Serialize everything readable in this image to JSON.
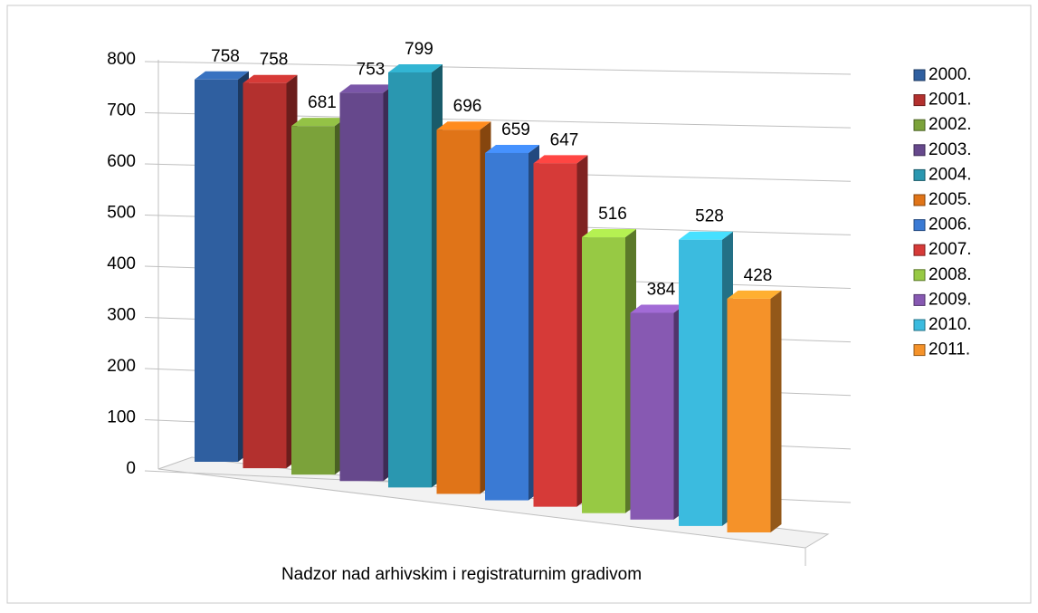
{
  "chart_data": {
    "type": "bar3d",
    "categories": [
      "Nadzor nad arhivskim i registraturnim gradivom"
    ],
    "series": [
      {
        "name": "2000.",
        "color": "#2f5fa0",
        "values": [
          758
        ]
      },
      {
        "name": "2001.",
        "color": "#b3302e",
        "values": [
          758
        ]
      },
      {
        "name": "2002.",
        "color": "#7ba23a",
        "values": [
          681
        ]
      },
      {
        "name": "2003.",
        "color": "#66488c",
        "values": [
          753
        ]
      },
      {
        "name": "2004.",
        "color": "#2a97b0",
        "values": [
          799
        ]
      },
      {
        "name": "2005.",
        "color": "#e07418",
        "values": [
          696
        ]
      },
      {
        "name": "2006.",
        "color": "#3a7ad4",
        "values": [
          659
        ]
      },
      {
        "name": "2007.",
        "color": "#d63a38",
        "values": [
          647
        ]
      },
      {
        "name": "2008.",
        "color": "#97c944",
        "values": [
          516
        ]
      },
      {
        "name": "2009.",
        "color": "#8759b2",
        "values": [
          384
        ]
      },
      {
        "name": "2010.",
        "color": "#3bbbdf",
        "values": [
          528
        ]
      },
      {
        "name": "2011.",
        "color": "#f59229",
        "values": [
          428
        ]
      }
    ],
    "ylim": [
      0,
      800
    ],
    "yticks": [
      0,
      100,
      200,
      300,
      400,
      500,
      600,
      700,
      800
    ],
    "grid": true,
    "legend": "right"
  }
}
